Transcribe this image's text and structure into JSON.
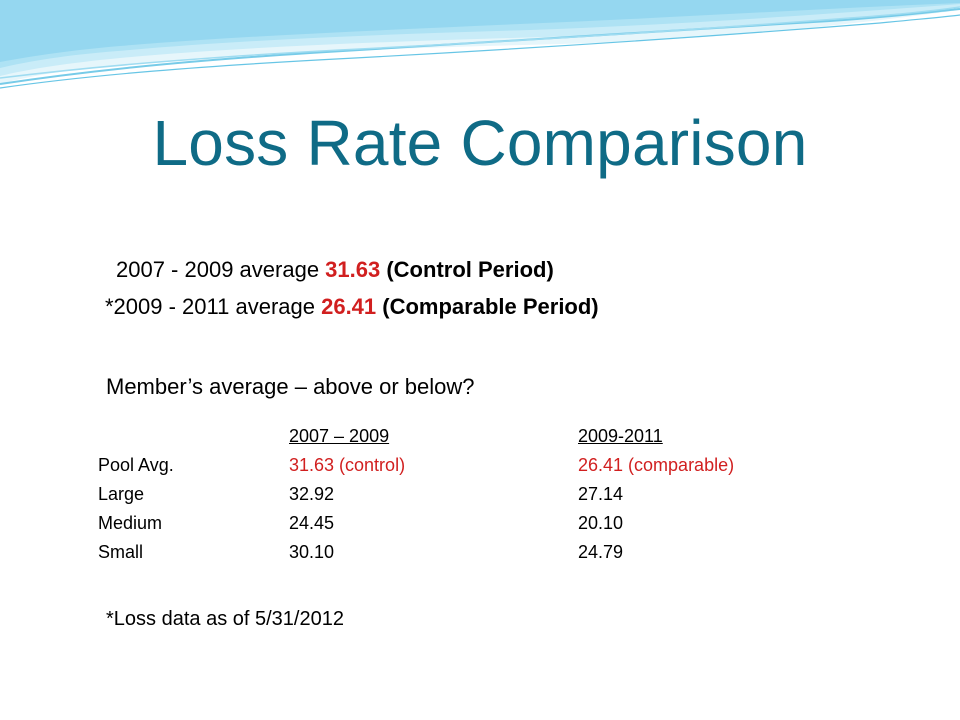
{
  "title": "Loss Rate Comparison",
  "summary": {
    "line1": {
      "prefix": "2007 - 2009 average ",
      "value": "31.63",
      "suffix": " (Control Period)"
    },
    "line2": {
      "prefix": "*2009 - 2011 average ",
      "value": "26.41",
      "suffix": " (Comparable Period)"
    }
  },
  "question": "Member’s average – above or below?",
  "table": {
    "headers": [
      "2007 – 2009 ",
      "2009-2011"
    ],
    "rows": [
      {
        "label": "Pool Avg.",
        "v1": "31.63 (control)",
        "v2": "26.41 (comparable)"
      },
      {
        "label": "Large",
        "v1": "32.92",
        "v2": "27.14"
      },
      {
        "label": "Medium",
        "v1": "24.45",
        "v2": "20.10"
      },
      {
        "label": "Small",
        "v1": "30.10",
        "v2": "24.79"
      }
    ]
  },
  "footnote": "*Loss data as of 5/31/2012",
  "colors": {
    "title": "#0f6b86",
    "accent_red": "#d11f1f",
    "wave_light": "#e6f6fb",
    "wave_mid": "#b8e3f3",
    "wave_line": "#6cc7e6"
  }
}
